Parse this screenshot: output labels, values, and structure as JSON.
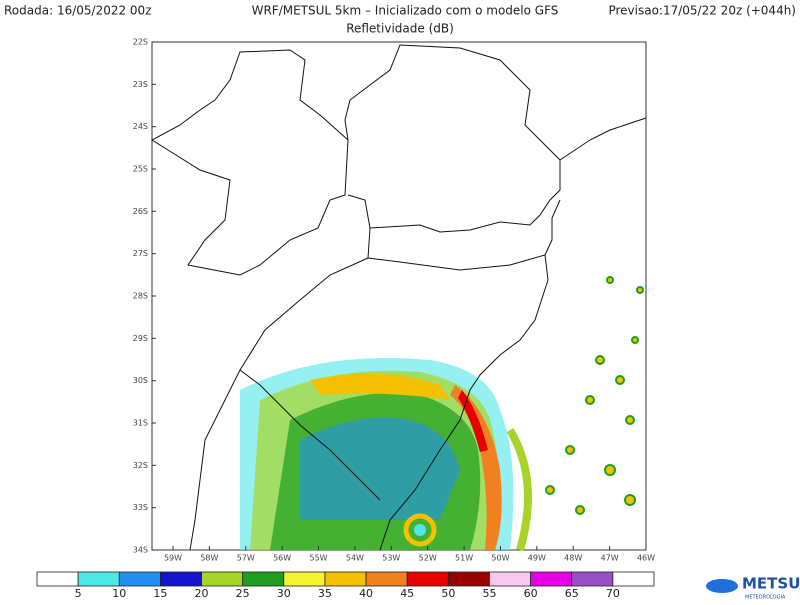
{
  "header": {
    "left": "Rodada: 16/05/2022 00z",
    "center": "WRF/METSUL 5km – Inicializado com o modelo GFS",
    "right": "Previsao:17/05/22 20z (+044h)",
    "subtitle": "Refletividade (dB)"
  },
  "map": {
    "lat_labels": [
      "22S",
      "23S",
      "24S",
      "25S",
      "26S",
      "27S",
      "28S",
      "29S",
      "30S",
      "31S",
      "32S",
      "33S",
      "34S"
    ],
    "lon_labels": [
      "59W",
      "58W",
      "57W",
      "56W",
      "55W",
      "54W",
      "53W",
      "52W",
      "51W",
      "50W",
      "49W",
      "48W",
      "47W",
      "46W"
    ]
  },
  "colorbar": {
    "colors": [
      "#ffffff",
      "#4ee8e8",
      "#2090f0",
      "#1414d0",
      "#a8d42a",
      "#1e9e1e",
      "#f4f430",
      "#f4c000",
      "#f08020",
      "#e60000",
      "#980000",
      "#f8c8f0",
      "#e600e6",
      "#9650c8",
      "#ffffff"
    ],
    "ticks": [
      5,
      10,
      15,
      20,
      25,
      30,
      35,
      40,
      45,
      50,
      55,
      60,
      65,
      70
    ]
  },
  "logo": {
    "name": "METSUL",
    "tagline": "METEOROLOGIA"
  }
}
